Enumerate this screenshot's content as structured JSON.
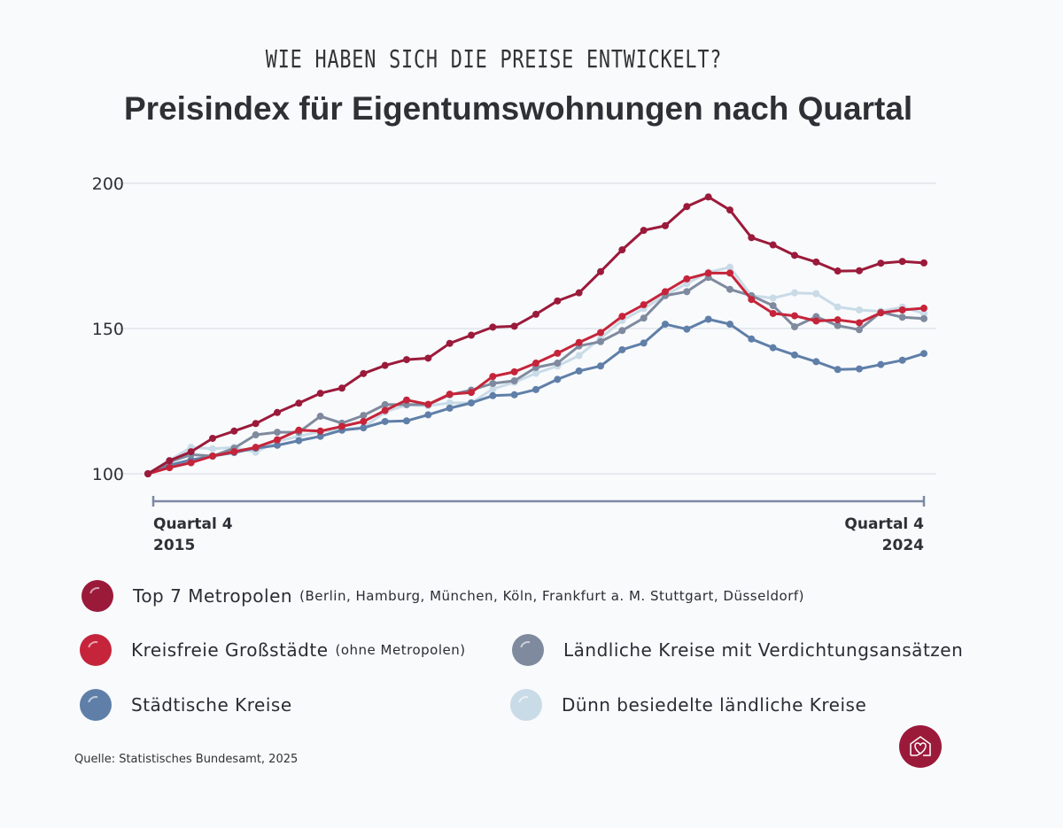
{
  "kicker": "WIE HABEN SICH DIE PREISE ENTWICKELT?",
  "title": "Preisindex für Eigentumswohnungen nach Quartal",
  "source": "Quelle: Statistisches Bundesamt, 2025",
  "logo_icon": "house-heart-icon",
  "chart_data": {
    "type": "line",
    "title": "Preisindex für Eigentumswohnungen nach Quartal",
    "x_start_label": [
      "Quartal 4",
      "2015"
    ],
    "x_end_label": [
      "Quartal 4",
      "2024"
    ],
    "x_count": 37,
    "ylim": [
      100,
      200
    ],
    "yticks": [
      "100",
      "150",
      "200"
    ],
    "grid": true,
    "legend_placement": "bottom",
    "series": [
      {
        "name": "Top 7 Metropolen",
        "note": "(Berlin, Hamburg, München, Köln, Frankfurt a. M. Stuttgart, Düsseldorf)",
        "color": "#9b1a3a",
        "values": [
          100,
          104.5,
          107.6,
          112.2,
          114.7,
          117.3,
          121.1,
          124.3,
          127.7,
          129.5,
          134.5,
          137.3,
          139.3,
          139.8,
          144.9,
          147.7,
          150.5,
          150.8,
          154.9,
          159.5,
          162.3,
          169.6,
          177.1,
          183.8,
          185.4,
          192.0,
          195.3,
          190.8,
          181.3,
          178.8,
          175.2,
          172.9,
          169.8,
          169.9,
          172.5,
          173.1,
          172.6
        ]
      },
      {
        "name": "Kreisfreie Großstädte",
        "note": "(ohne Metropolen)",
        "color": "#c5243a",
        "values": [
          100,
          102.1,
          103.8,
          106.1,
          107.6,
          109.1,
          111.7,
          115.0,
          114.7,
          116.3,
          118.0,
          121.8,
          125.4,
          123.9,
          127.4,
          128.0,
          133.5,
          135.1,
          138.1,
          141.5,
          145.2,
          148.6,
          154.2,
          158.2,
          162.7,
          167.1,
          169.1,
          169.1,
          160.0,
          155.2,
          154.4,
          152.6,
          153.0,
          152.0,
          155.4,
          156.4,
          157.0
        ]
      },
      {
        "name": "Ländliche Kreise mit Verdichtungsansätzen",
        "note": "",
        "color": "#7f8a9e",
        "values": [
          100,
          104.1,
          106.6,
          106.1,
          108.8,
          113.4,
          114.3,
          114.3,
          119.8,
          117.4,
          120.1,
          123.8,
          123.8,
          123.8,
          127.2,
          128.8,
          131.1,
          132.0,
          136.6,
          138.1,
          144.0,
          145.5,
          149.3,
          153.6,
          161.3,
          162.7,
          167.6,
          163.5,
          161.3,
          157.9,
          150.6,
          154.1,
          151.0,
          149.6,
          155.6,
          153.9,
          153.4
        ]
      },
      {
        "name": "Städtische Kreise",
        "note": "",
        "color": "#5f7fa8",
        "values": [
          100,
          103.0,
          104.8,
          106.1,
          107.3,
          108.8,
          109.8,
          111.4,
          112.9,
          115.0,
          115.8,
          118.0,
          118.2,
          120.3,
          122.6,
          124.4,
          126.9,
          127.2,
          129.0,
          132.5,
          135.4,
          137.1,
          142.7,
          145.0,
          151.5,
          149.8,
          153.2,
          151.5,
          146.4,
          143.4,
          140.9,
          138.6,
          135.9,
          136.1,
          137.6,
          139.1,
          141.4
        ]
      },
      {
        "name": "Dünn besiedelte ländliche Kreise",
        "note": "",
        "color": "#c9dbe7",
        "values": [
          100,
          104.6,
          109.1,
          108.6,
          109.1,
          107.4,
          111.2,
          112.9,
          114.5,
          115.2,
          115.9,
          121.3,
          123.7,
          123.4,
          124.4,
          124.4,
          129.2,
          131.5,
          134.6,
          137.1,
          140.7,
          146.7,
          152.8,
          156.9,
          161.5,
          165.5,
          169.4,
          171.1,
          161.3,
          160.5,
          162.3,
          162.0,
          157.4,
          156.4,
          155.9,
          157.4,
          155.2
        ]
      }
    ]
  }
}
